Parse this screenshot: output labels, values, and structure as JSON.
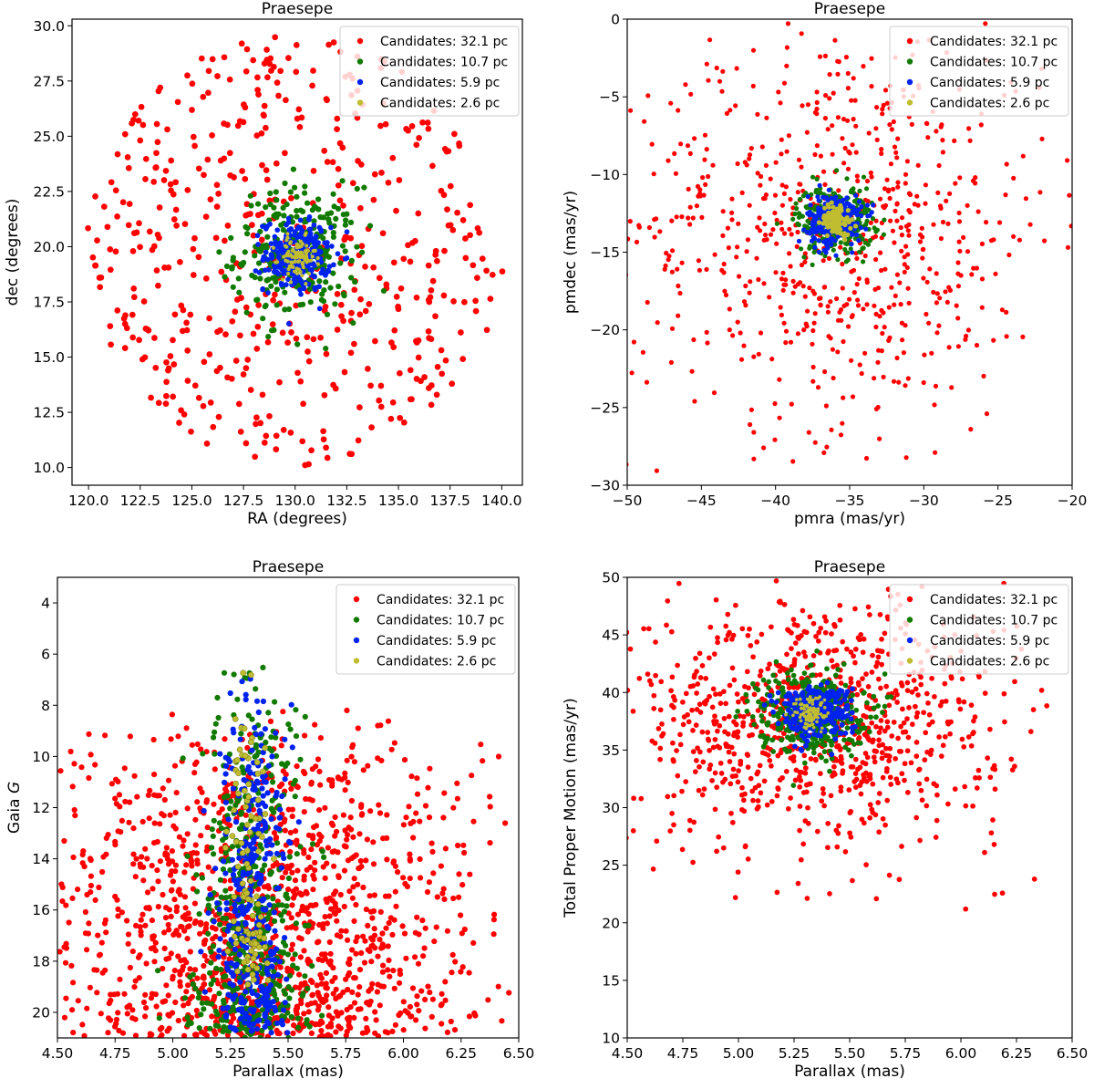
{
  "figure": {
    "colors": {
      "Candidates: 32.1 pc": "#ff0000",
      "Candidates: 10.7 pc": "#117a00",
      "Candidates: 5.9 pc": "#0022ee",
      "Candidates: 2.6 pc": "#c0bd30"
    }
  },
  "chart_data": [
    {
      "type": "scatter",
      "title": "Praesepe",
      "xlabel": "RA (degrees)",
      "ylabel": "dec (degrees)",
      "xlim": [
        119.2,
        141.0
      ],
      "ylim": [
        9.2,
        30.3
      ],
      "xticks": [
        120.0,
        122.5,
        125.0,
        127.5,
        130.0,
        132.5,
        135.0,
        137.5,
        140.0
      ],
      "xtick_labels": [
        "120.0",
        "122.5",
        "125.0",
        "127.5",
        "130.0",
        "132.5",
        "135.0",
        "137.5",
        "140.0"
      ],
      "yticks": [
        10.0,
        12.5,
        15.0,
        17.5,
        20.0,
        22.5,
        25.0,
        27.5,
        30.0
      ],
      "ytick_labels": [
        "10.0",
        "12.5",
        "15.0",
        "17.5",
        "20.0",
        "22.5",
        "25.0",
        "27.5",
        "30.0"
      ],
      "legend_position": "top-right",
      "series": [
        {
          "name": "Candidates: 32.1 pc",
          "center": [
            130.0,
            19.8
          ],
          "spread": [
            5.2,
            5.0
          ],
          "count": 520,
          "marker_size": 5.5
        },
        {
          "name": "Candidates: 10.7 pc",
          "center": [
            130.1,
            19.7
          ],
          "spread": [
            1.5,
            1.5
          ],
          "count": 260,
          "marker_size": 5
        },
        {
          "name": "Candidates: 5.9 pc",
          "center": [
            130.1,
            19.6
          ],
          "spread": [
            0.8,
            0.8
          ],
          "count": 240,
          "marker_size": 4.5
        },
        {
          "name": "Candidates: 2.6 pc",
          "center": [
            130.1,
            19.5
          ],
          "spread": [
            0.45,
            0.45
          ],
          "count": 90,
          "marker_size": 3
        }
      ]
    },
    {
      "type": "scatter",
      "title": "Praesepe",
      "xlabel": "pmra (mas/yr)",
      "ylabel": "pmdec (mas/yr)",
      "xlim": [
        -50,
        -20
      ],
      "ylim": [
        -30,
        0
      ],
      "xticks": [
        -50,
        -45,
        -40,
        -35,
        -30,
        -25,
        -20
      ],
      "xtick_labels": [
        "−50",
        "−45",
        "−40",
        "−35",
        "−30",
        "−25",
        "−20"
      ],
      "yticks": [
        -30,
        -25,
        -20,
        -15,
        -10,
        -5,
        0
      ],
      "ytick_labels": [
        "−30",
        "−25",
        "−20",
        "−15",
        "−10",
        "−5",
        "0"
      ],
      "legend_position": "top-right",
      "series": [
        {
          "name": "Candidates: 32.1 pc",
          "center": [
            -35.8,
            -13.2
          ],
          "spread": [
            7.0,
            6.5
          ],
          "count": 700,
          "marker_size": 4
        },
        {
          "name": "Candidates: 10.7 pc",
          "center": [
            -36.0,
            -12.9
          ],
          "spread": [
            1.3,
            1.1
          ],
          "count": 300,
          "marker_size": 4
        },
        {
          "name": "Candidates: 5.9 pc",
          "center": [
            -36.0,
            -12.9
          ],
          "spread": [
            0.9,
            0.8
          ],
          "count": 300,
          "marker_size": 4
        },
        {
          "name": "Candidates: 2.6 pc",
          "center": [
            -35.9,
            -12.9
          ],
          "spread": [
            0.5,
            0.5
          ],
          "count": 100,
          "marker_size": 4
        }
      ]
    },
    {
      "type": "scatter",
      "title": "Praesepe",
      "xlabel": "Parallax (mas)",
      "ylabel": "Gaia G",
      "xlim": [
        4.5,
        6.5
      ],
      "ylim": [
        21,
        3
      ],
      "y_inverted": true,
      "xticks": [
        4.5,
        4.75,
        5.0,
        5.25,
        5.5,
        5.75,
        6.0,
        6.25,
        6.5
      ],
      "xtick_labels": [
        "4.50",
        "4.75",
        "5.00",
        "5.25",
        "5.50",
        "5.75",
        "6.00",
        "6.25",
        "6.50"
      ],
      "yticks": [
        4,
        6,
        8,
        10,
        12,
        14,
        16,
        18,
        20
      ],
      "ytick_labels": [
        "4",
        "6",
        "8",
        "10",
        "12",
        "14",
        "16",
        "18",
        "20"
      ],
      "legend_position": "top-right",
      "series": [
        {
          "name": "Candidates: 32.1 pc",
          "x_center": 5.35,
          "x_spread": 0.45,
          "mag_range": [
            7.9,
            21.0
          ],
          "count": 1400,
          "marker_size": 5
        },
        {
          "name": "Candidates: 10.7 pc",
          "x_center": 5.33,
          "x_spread": 0.12,
          "mag_range": [
            6.4,
            21.0
          ],
          "count": 500,
          "marker_size": 5
        },
        {
          "name": "Candidates: 5.9 pc",
          "x_center": 5.34,
          "x_spread": 0.07,
          "mag_range": [
            6.2,
            20.8
          ],
          "count": 380,
          "marker_size": 5
        },
        {
          "name": "Candidates: 2.6 pc",
          "x_center": 5.33,
          "x_spread": 0.04,
          "mag_range": [
            6.2,
            19.0
          ],
          "count": 100,
          "marker_size": 5
        }
      ]
    },
    {
      "type": "scatter",
      "title": "Praesepe",
      "xlabel": "Parallax (mas)",
      "ylabel": "Total Proper Motion (mas/yr)",
      "xlim": [
        4.5,
        6.5
      ],
      "ylim": [
        10,
        50
      ],
      "xticks": [
        4.5,
        4.75,
        5.0,
        5.25,
        5.5,
        5.75,
        6.0,
        6.25,
        6.5
      ],
      "xtick_labels": [
        "4.50",
        "4.75",
        "5.00",
        "5.25",
        "5.50",
        "5.75",
        "6.00",
        "6.25",
        "6.50"
      ],
      "yticks": [
        10,
        15,
        20,
        25,
        30,
        35,
        40,
        45,
        50
      ],
      "ytick_labels": [
        "10",
        "15",
        "20",
        "25",
        "30",
        "35",
        "40",
        "45",
        "50"
      ],
      "legend_position": "top-right",
      "series": [
        {
          "name": "Candidates: 32.1 pc",
          "center": [
            5.35,
            37.5
          ],
          "spread": [
            0.42,
            5.5
          ],
          "count": 900,
          "marker_size": 4.5
        },
        {
          "name": "Candidates: 10.7 pc",
          "center": [
            5.33,
            38.3
          ],
          "spread": [
            0.12,
            1.8
          ],
          "count": 400,
          "marker_size": 4.5
        },
        {
          "name": "Candidates: 5.9 pc",
          "center": [
            5.34,
            38.4
          ],
          "spread": [
            0.08,
            1.1
          ],
          "count": 330,
          "marker_size": 4.5
        },
        {
          "name": "Candidates: 2.6 pc",
          "center": [
            5.33,
            38.2
          ],
          "spread": [
            0.04,
            0.7
          ],
          "count": 100,
          "marker_size": 2.5
        }
      ]
    }
  ]
}
